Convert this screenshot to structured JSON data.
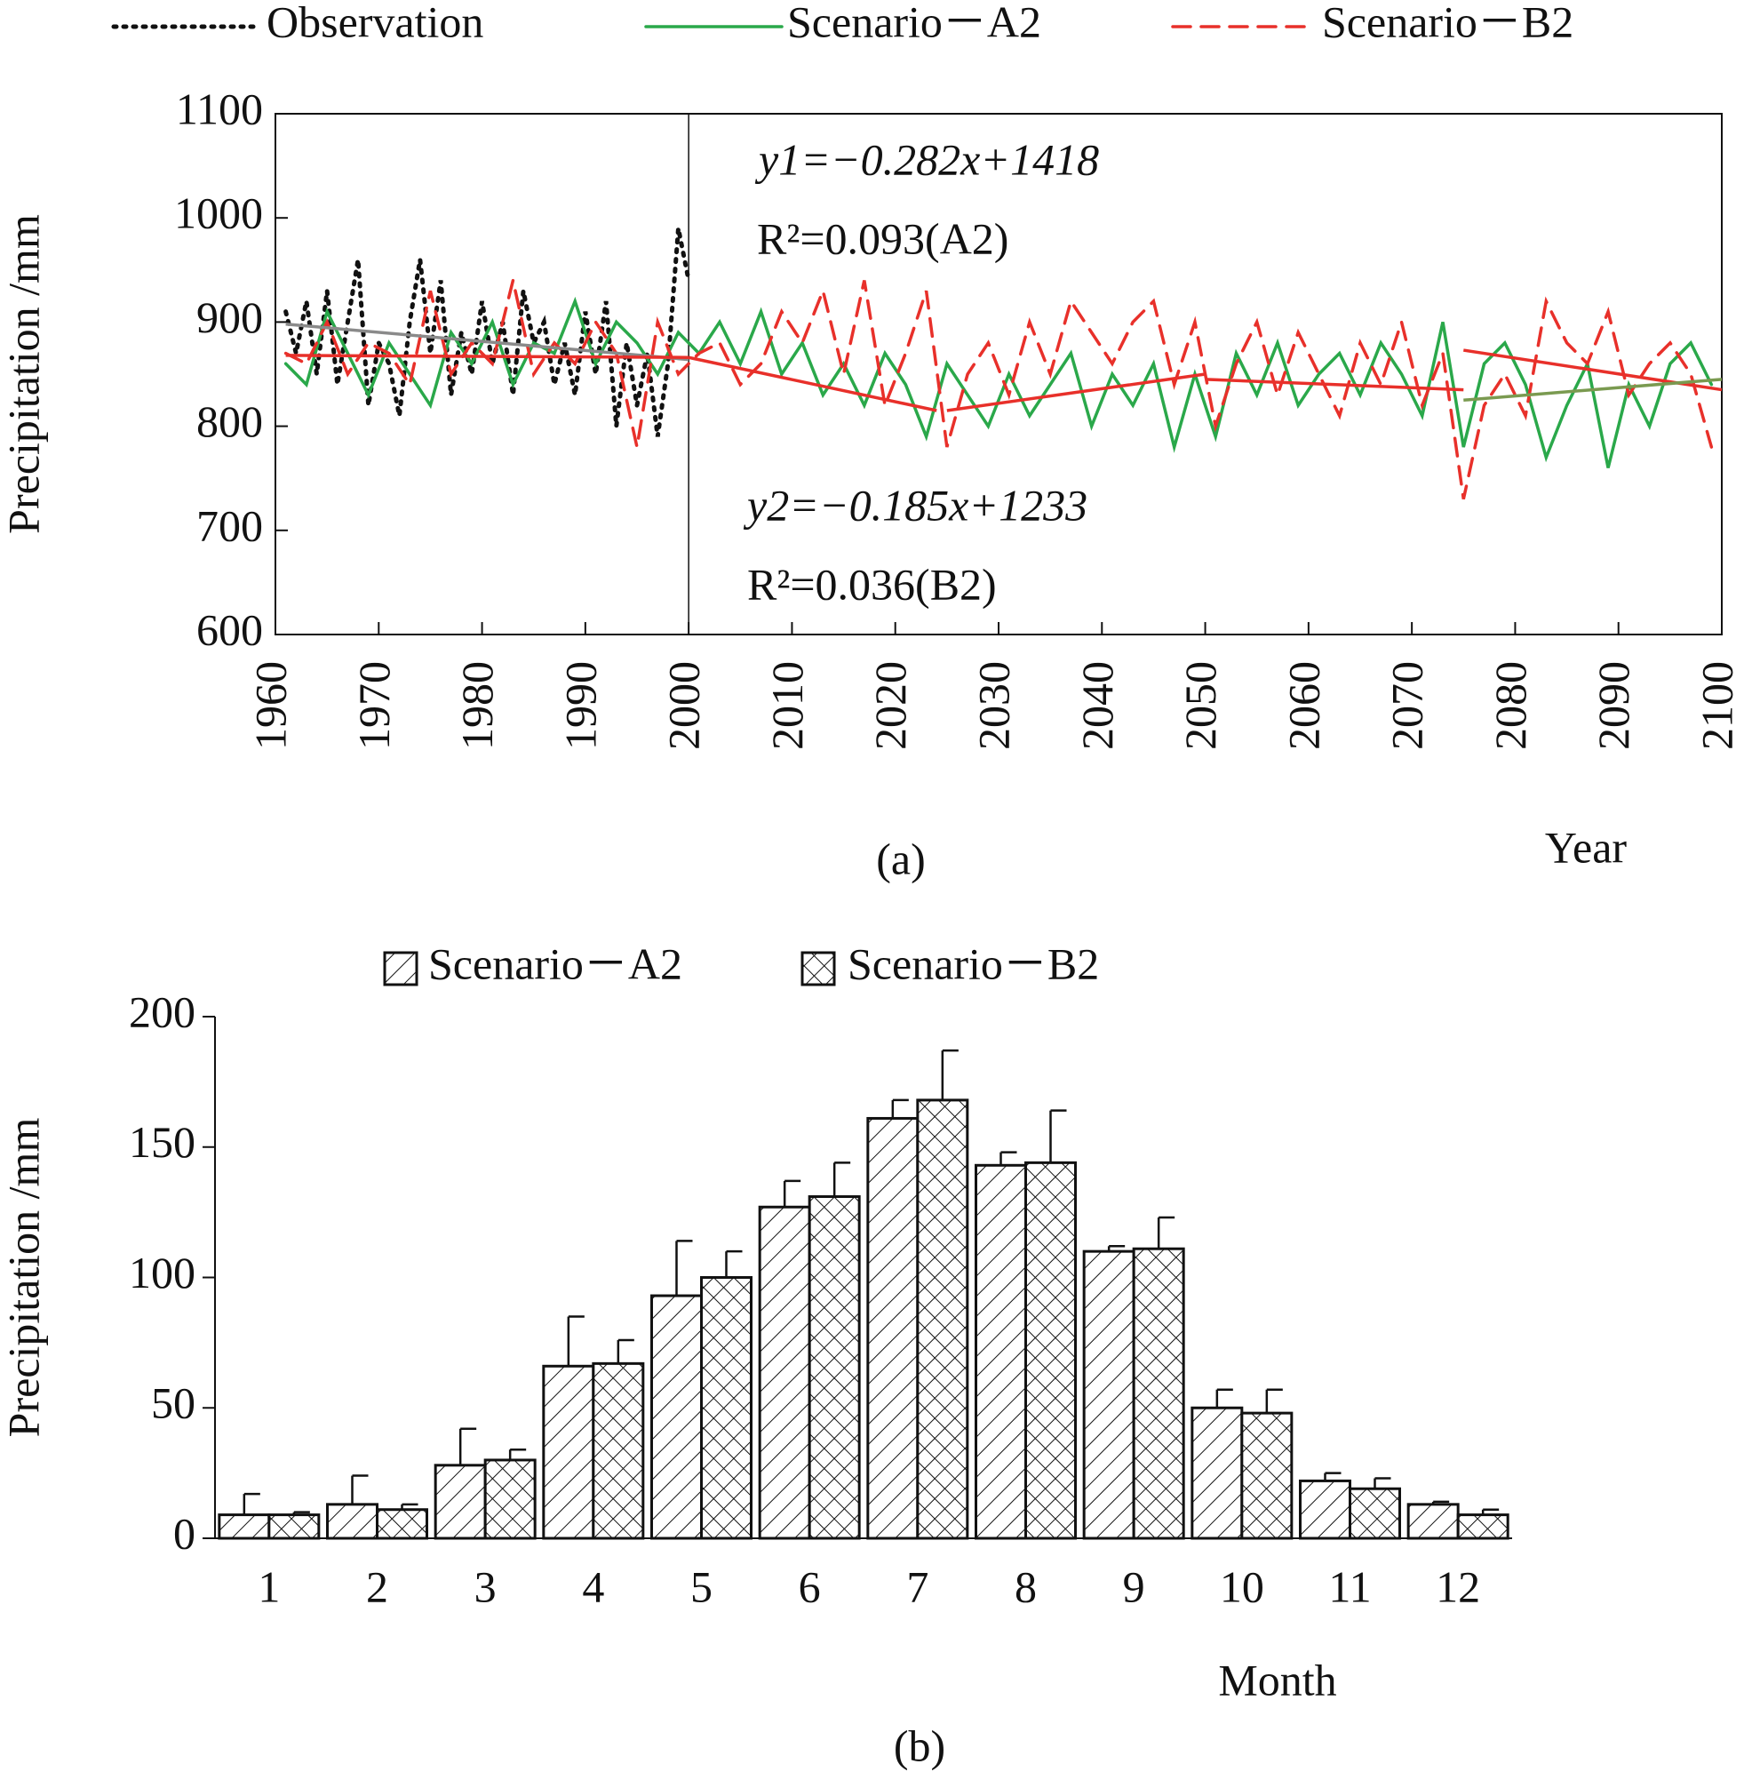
{
  "chart_data": [
    {
      "type": "line",
      "caption": "(a)",
      "x_label": "Year",
      "y_label": "Precipitation /mm",
      "xlim": [
        1960,
        2100
      ],
      "xticks": [
        1960,
        1970,
        1980,
        1990,
        2000,
        2010,
        2020,
        2030,
        2040,
        2050,
        2060,
        2070,
        2080,
        2090,
        2100
      ],
      "ylim": [
        600,
        1100
      ],
      "yticks": [
        600,
        700,
        800,
        900,
        1000,
        1100
      ],
      "divider_x": 2000,
      "annotations": [
        "y1=−0.282x+1418",
        "R²=0.093(A2)",
        "y2=−0.185x+1233",
        "R²=0.036(B2)"
      ],
      "series": [
        {
          "name": "Observation",
          "color": "#111111",
          "style": "dotted",
          "x": [
            1961,
            1962,
            1963,
            1964,
            1965,
            1966,
            1967,
            1968,
            1969,
            1970,
            1971,
            1972,
            1973,
            1974,
            1975,
            1976,
            1977,
            1978,
            1979,
            1980,
            1981,
            1982,
            1983,
            1984,
            1985,
            1986,
            1987,
            1988,
            1989,
            1990,
            1991,
            1992,
            1993,
            1994,
            1995,
            1996,
            1997,
            1998,
            1999,
            2000
          ],
          "values": [
            910,
            870,
            920,
            850,
            930,
            840,
            900,
            960,
            820,
            880,
            860,
            810,
            900,
            960,
            870,
            940,
            830,
            890,
            850,
            920,
            860,
            900,
            830,
            930,
            880,
            900,
            840,
            880,
            830,
            910,
            850,
            920,
            800,
            880,
            820,
            870,
            790,
            860,
            990,
            940
          ]
        },
        {
          "name": "Scenario－A2",
          "color": "#2aa84a",
          "style": "solid",
          "x": [
            1961,
            1963,
            1965,
            1967,
            1969,
            1971,
            1973,
            1975,
            1977,
            1979,
            1981,
            1983,
            1985,
            1987,
            1989,
            1991,
            1993,
            1995,
            1997,
            1999,
            2001,
            2003,
            2005,
            2007,
            2009,
            2011,
            2013,
            2015,
            2017,
            2019,
            2021,
            2023,
            2025,
            2027,
            2029,
            2031,
            2033,
            2035,
            2037,
            2039,
            2041,
            2043,
            2045,
            2047,
            2049,
            2051,
            2053,
            2055,
            2057,
            2059,
            2061,
            2063,
            2065,
            2067,
            2069,
            2071,
            2073,
            2075,
            2077,
            2079,
            2081,
            2083,
            2085,
            2087,
            2089,
            2091,
            2093,
            2095,
            2097,
            2099
          ],
          "values": [
            860,
            840,
            910,
            870,
            830,
            880,
            850,
            820,
            890,
            860,
            900,
            840,
            880,
            870,
            920,
            860,
            900,
            880,
            850,
            890,
            870,
            900,
            860,
            910,
            850,
            880,
            830,
            860,
            820,
            870,
            840,
            790,
            860,
            830,
            800,
            850,
            810,
            840,
            870,
            800,
            850,
            820,
            860,
            780,
            850,
            790,
            870,
            830,
            880,
            820,
            850,
            870,
            830,
            880,
            850,
            810,
            900,
            780,
            860,
            880,
            840,
            770,
            820,
            860,
            760,
            840,
            800,
            860,
            880,
            840
          ]
        },
        {
          "name": "Scenario－B2",
          "color": "#e8302a",
          "style": "dashed",
          "x": [
            1961,
            1963,
            1965,
            1967,
            1969,
            1971,
            1973,
            1975,
            1977,
            1979,
            1981,
            1983,
            1985,
            1987,
            1989,
            1991,
            1993,
            1995,
            1997,
            1999,
            2001,
            2003,
            2005,
            2007,
            2009,
            2011,
            2013,
            2015,
            2017,
            2019,
            2021,
            2023,
            2025,
            2027,
            2029,
            2031,
            2033,
            2035,
            2037,
            2039,
            2041,
            2043,
            2045,
            2047,
            2049,
            2051,
            2053,
            2055,
            2057,
            2059,
            2061,
            2063,
            2065,
            2067,
            2069,
            2071,
            2073,
            2075,
            2077,
            2079,
            2081,
            2083,
            2085,
            2087,
            2089,
            2091,
            2093,
            2095,
            2097,
            2099
          ],
          "values": [
            870,
            860,
            900,
            850,
            880,
            870,
            840,
            930,
            850,
            880,
            860,
            940,
            850,
            880,
            860,
            900,
            870,
            780,
            900,
            850,
            870,
            880,
            840,
            860,
            910,
            880,
            930,
            850,
            940,
            820,
            870,
            930,
            780,
            850,
            880,
            830,
            900,
            850,
            920,
            890,
            860,
            900,
            920,
            840,
            900,
            800,
            860,
            900,
            830,
            890,
            850,
            810,
            880,
            840,
            900,
            820,
            870,
            730,
            820,
            850,
            810,
            920,
            880,
            860,
            910,
            830,
            860,
            880,
            850,
            780
          ]
        }
      ],
      "trend_lines": [
        {
          "color": "#8a8a8a",
          "x": [
            1961,
            2000
          ],
          "values": [
            898,
            864
          ]
        },
        {
          "color": "#e8302a",
          "x": [
            1961,
            2000
          ],
          "values": [
            868,
            866
          ]
        },
        {
          "color": "#e8302a",
          "x": [
            2000,
            2024
          ],
          "values": [
            866,
            815
          ]
        },
        {
          "color": "#e8302a",
          "x": [
            2025,
            2050
          ],
          "values": [
            815,
            850
          ]
        },
        {
          "color": "#e8302a",
          "x": [
            2050,
            2075
          ],
          "values": [
            845,
            835
          ]
        },
        {
          "color": "#e8302a",
          "x": [
            2075,
            2100
          ],
          "values": [
            873,
            835
          ]
        },
        {
          "color": "#7a9a50",
          "x": [
            2075,
            2100
          ],
          "values": [
            825,
            845
          ]
        }
      ]
    },
    {
      "type": "bar",
      "caption": "(b)",
      "x_label": "Month",
      "y_label": "Precipitation /mm",
      "categories": [
        "1",
        "2",
        "3",
        "4",
        "5",
        "6",
        "7",
        "8",
        "9",
        "10",
        "11",
        "12"
      ],
      "ylim": [
        0,
        200
      ],
      "yticks": [
        0,
        50,
        100,
        150,
        200
      ],
      "series": [
        {
          "name": "Scenario－A2",
          "pattern": "hatch",
          "values": [
            9,
            13,
            28,
            66,
            93,
            127,
            161,
            143,
            110,
            50,
            22,
            13
          ],
          "errors": [
            8,
            11,
            14,
            19,
            21,
            10,
            7,
            5,
            2,
            7,
            3,
            1
          ]
        },
        {
          "name": "Scenario－B2",
          "pattern": "crosshatch",
          "values": [
            9,
            11,
            30,
            67,
            100,
            131,
            168,
            144,
            111,
            48,
            19,
            9
          ],
          "errors": [
            1,
            2,
            4,
            9,
            10,
            13,
            19,
            20,
            12,
            9,
            4,
            2
          ]
        }
      ]
    }
  ]
}
